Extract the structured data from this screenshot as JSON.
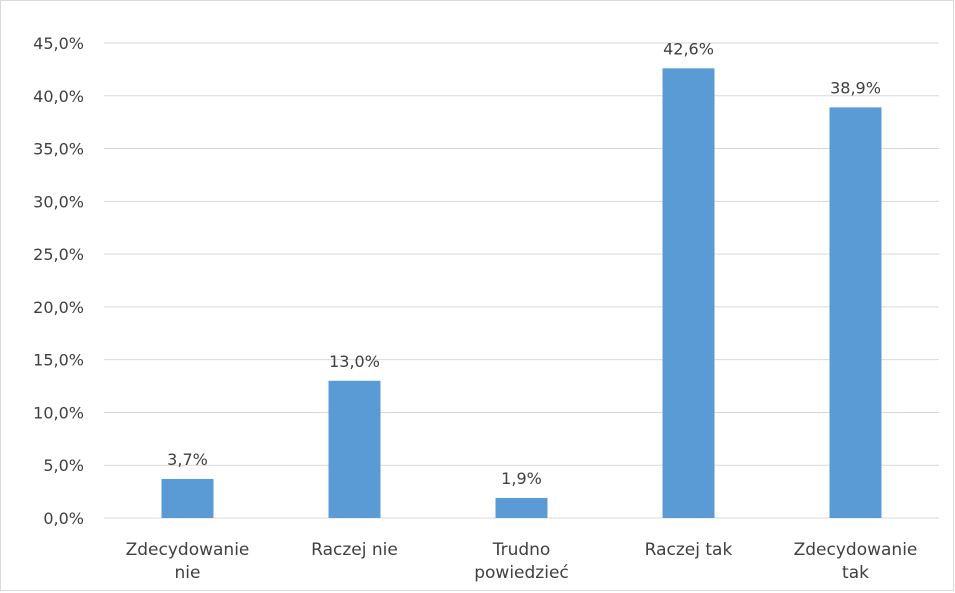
{
  "chart_data": {
    "type": "bar",
    "categories": [
      [
        "Zdecydowanie",
        "nie"
      ],
      [
        "Raczej nie"
      ],
      [
        "Trudno",
        "powiedzieć"
      ],
      [
        "Raczej tak"
      ],
      [
        "Zdecydowanie",
        "tak"
      ]
    ],
    "values": [
      3.7,
      13.0,
      1.9,
      42.6,
      38.9
    ],
    "data_labels": [
      "3,7%",
      "13,0%",
      "1,9%",
      "42,6%",
      "38,9%"
    ],
    "y_ticks": [
      0,
      5,
      10,
      15,
      20,
      25,
      30,
      35,
      40,
      45
    ],
    "y_tick_labels": [
      "0,0%",
      "5,0%",
      "10,0%",
      "15,0%",
      "20,0%",
      "25,0%",
      "30,0%",
      "35,0%",
      "40,0%",
      "45,0%"
    ],
    "ylim": [
      0,
      45
    ],
    "grid": true,
    "legend": "none",
    "colors": {
      "bar": "#5b9bd5",
      "grid": "#d9d9d9",
      "text": "#404040"
    }
  }
}
